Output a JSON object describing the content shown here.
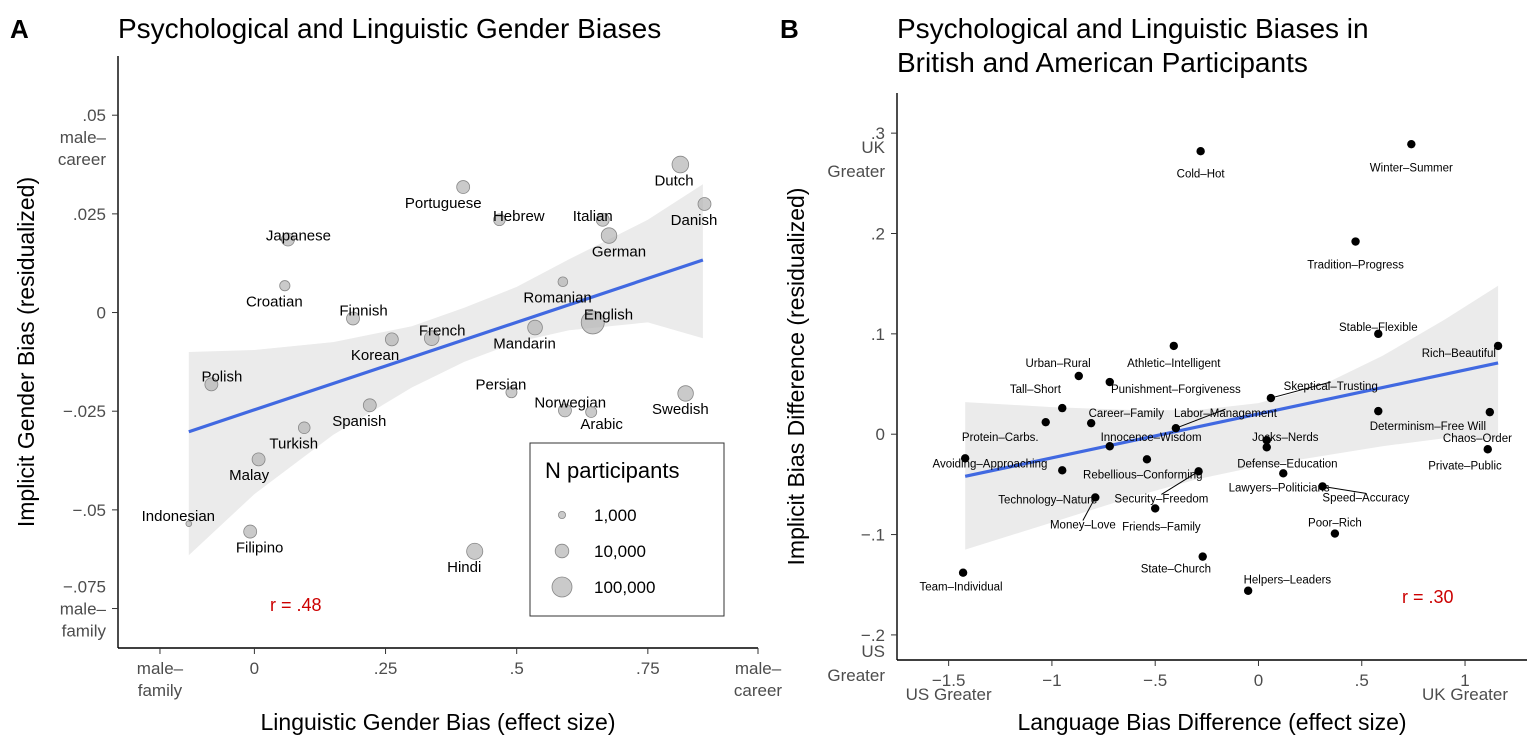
{
  "panels": {
    "a": {
      "letter": "A",
      "title": "Psychological and Linguistic Gender Biases",
      "r_label": "r = .48"
    },
    "b": {
      "letter": "B",
      "title_line1": "Psychological and Linguistic Biases in",
      "title_line2": "British and American Participants",
      "r_label": "r = .30"
    }
  },
  "legend": {
    "title": "N participants",
    "items": [
      {
        "label": "1,000",
        "n": 1000
      },
      {
        "label": "10,000",
        "n": 10000
      },
      {
        "label": "100,000",
        "n": 100000
      }
    ]
  },
  "chart_data": [
    {
      "type": "scatter",
      "title": "Psychological and Linguistic Gender Biases",
      "xlabel": "Linguistic Gender Bias (effect size)",
      "ylabel": "Implicit  Gender Bias (residualized)",
      "xlim": [
        -0.26,
        0.96
      ],
      "ylim": [
        -0.085,
        0.065
      ],
      "x_ticks": [
        {
          "value": -0.18,
          "label": "male–\nfamily"
        },
        {
          "value": 0,
          "label": "0"
        },
        {
          "value": 0.25,
          "label": ".25"
        },
        {
          "value": 0.5,
          "label": ".5"
        },
        {
          "value": 0.75,
          "label": ".75"
        },
        {
          "value": 0.96,
          "label": "male–\ncareer"
        }
      ],
      "y_ticks": [
        {
          "value": 0.05,
          "label": ".05\nmale–\ncareer"
        },
        {
          "value": 0.025,
          "label": ".025"
        },
        {
          "value": 0,
          "label": "0"
        },
        {
          "value": -0.025,
          "label": "−.025"
        },
        {
          "value": -0.05,
          "label": "−.05"
        },
        {
          "value": -0.075,
          "label": "−.075\nmale–\nfamily"
        }
      ],
      "point_color": "#b3b3b3",
      "line_color": "#4169e1",
      "band_color": "#ebebeb",
      "fit": {
        "x": [
          -0.125,
          0.855
        ],
        "y": [
          -0.0302,
          0.0133
        ]
      },
      "band": {
        "x": [
          -0.125,
          0.0,
          0.15,
          0.3,
          0.4,
          0.5,
          0.6,
          0.75,
          0.855
        ],
        "lower": [
          -0.0615,
          -0.046,
          -0.031,
          -0.019,
          -0.0125,
          -0.0075,
          -0.0045,
          -0.0025,
          -0.0065
        ],
        "upper": [
          -0.01,
          -0.0095,
          -0.0075,
          -0.0035,
          0.0012,
          0.0065,
          0.0135,
          0.0235,
          0.0325
        ]
      },
      "r": 0.48,
      "points": [
        {
          "label": "Dutch",
          "x": 0.812,
          "y": 0.0375,
          "n": 30000,
          "lx": 0.8,
          "ly": 0.0335
        },
        {
          "label": "Danish",
          "x": 0.858,
          "y": 0.0275,
          "n": 8000,
          "lx": 0.838,
          "ly": 0.0235
        },
        {
          "label": "Portuguese",
          "x": 0.398,
          "y": 0.0318,
          "n": 8000,
          "lx": 0.36,
          "ly": 0.0278
        },
        {
          "label": "Hebrew",
          "x": 0.467,
          "y": 0.0235,
          "n": 5000,
          "lx": 0.504,
          "ly": 0.0245
        },
        {
          "label": "Italian",
          "x": 0.664,
          "y": 0.0235,
          "n": 8000,
          "lx": 0.645,
          "ly": 0.0245
        },
        {
          "label": "German",
          "x": 0.676,
          "y": 0.0195,
          "n": 20000,
          "lx": 0.695,
          "ly": 0.0155
        },
        {
          "label": "Japanese",
          "x": 0.064,
          "y": 0.0185,
          "n": 8000,
          "lx": 0.084,
          "ly": 0.0195
        },
        {
          "label": "Croatian",
          "x": 0.058,
          "y": 0.0068,
          "n": 3000,
          "lx": 0.038,
          "ly": 0.0028
        },
        {
          "label": "Romanian",
          "x": 0.588,
          "y": 0.0078,
          "n": 2500,
          "lx": 0.578,
          "ly": 0.0038
        },
        {
          "label": "Finnish",
          "x": 0.188,
          "y": -0.0015,
          "n": 8000,
          "lx": 0.208,
          "ly": 0.0005
        },
        {
          "label": "English",
          "x": 0.645,
          "y": -0.0025,
          "n": 300000,
          "lx": 0.675,
          "ly": -0.0005
        },
        {
          "label": "French",
          "x": 0.338,
          "y": -0.0065,
          "n": 15000,
          "lx": 0.358,
          "ly": -0.0045
        },
        {
          "label": "Mandarin",
          "x": 0.535,
          "y": -0.0038,
          "n": 15000,
          "lx": 0.515,
          "ly": -0.0078
        },
        {
          "label": "Korean",
          "x": 0.262,
          "y": -0.0068,
          "n": 8000,
          "lx": 0.23,
          "ly": -0.0108
        },
        {
          "label": "Polish",
          "x": -0.082,
          "y": -0.0182,
          "n": 8000,
          "lx": -0.062,
          "ly": -0.0162
        },
        {
          "label": "Persian",
          "x": 0.49,
          "y": -0.0202,
          "n": 4000,
          "lx": 0.47,
          "ly": -0.0182
        },
        {
          "label": "Norwegian",
          "x": 0.592,
          "y": -0.0248,
          "n": 8000,
          "lx": 0.602,
          "ly": -0.0228
        },
        {
          "label": "Swedish",
          "x": 0.822,
          "y": -0.0205,
          "n": 20000,
          "lx": 0.812,
          "ly": -0.0245
        },
        {
          "label": "Arabic",
          "x": 0.642,
          "y": -0.0252,
          "n": 4000,
          "lx": 0.662,
          "ly": -0.0282
        },
        {
          "label": "Spanish",
          "x": 0.22,
          "y": -0.0235,
          "n": 8000,
          "lx": 0.2,
          "ly": -0.0275
        },
        {
          "label": "Turkish",
          "x": 0.095,
          "y": -0.0292,
          "n": 5000,
          "lx": 0.075,
          "ly": -0.0332
        },
        {
          "label": "Malay",
          "x": 0.008,
          "y": -0.0372,
          "n": 8000,
          "lx": -0.01,
          "ly": -0.0412
        },
        {
          "label": "Indonesian",
          "x": -0.125,
          "y": -0.0535,
          "n": 600,
          "lx": -0.145,
          "ly": -0.0515
        },
        {
          "label": "Filipino",
          "x": -0.008,
          "y": -0.0555,
          "n": 8000,
          "lx": 0.01,
          "ly": -0.0595
        },
        {
          "label": "Hindi",
          "x": 0.42,
          "y": -0.0605,
          "n": 25000,
          "lx": 0.4,
          "ly": -0.0645
        }
      ]
    },
    {
      "type": "scatter",
      "title": "Psychological and Linguistic Biases in British and American Participants",
      "xlabel": "Language Bias Difference (effect size)",
      "ylabel": "Implicit Bias Difference (residualized)",
      "xlim": [
        -1.75,
        1.3
      ],
      "ylim": [
        -0.225,
        0.34
      ],
      "x_ticks": [
        {
          "value": -1.5,
          "label": "−1.5"
        },
        {
          "value": -1,
          "label": "−1"
        },
        {
          "value": -0.5,
          "label": "−.5"
        },
        {
          "value": 0,
          "label": "0"
        },
        {
          "value": 0.5,
          "label": ".5"
        },
        {
          "value": 1,
          "label": "1"
        }
      ],
      "x_extra_labels": [
        {
          "value": -1.5,
          "label": "US Greater"
        },
        {
          "value": 1.0,
          "label": "UK Greater"
        }
      ],
      "y_ticks": [
        {
          "value": 0.3,
          "label": ".3"
        },
        {
          "value": 0.2,
          "label": ".2"
        },
        {
          "value": 0.1,
          "label": ".1"
        },
        {
          "value": 0,
          "label": "0"
        },
        {
          "value": -0.1,
          "label": "−.1"
        },
        {
          "value": -0.2,
          "label": "−.2"
        }
      ],
      "y_extra_labels": [
        {
          "value": 0.28,
          "label": "UK\nGreater"
        },
        {
          "value": -0.222,
          "label": "US\nGreater"
        }
      ],
      "point_color": "#000000",
      "line_color": "#4169e1",
      "band_color": "#ebebeb",
      "fit": {
        "x": [
          -1.42,
          1.16
        ],
        "y": [
          -0.042,
          0.071
        ]
      },
      "band": {
        "x": [
          -1.42,
          -1.0,
          -0.6,
          -0.3,
          0.0,
          0.3,
          0.6,
          0.9,
          1.16
        ],
        "lower": [
          -0.115,
          -0.088,
          -0.062,
          -0.045,
          -0.032,
          -0.022,
          -0.012,
          -0.004,
          -0.005
        ],
        "upper": [
          0.032,
          0.027,
          0.024,
          0.024,
          0.031,
          0.048,
          0.078,
          0.114,
          0.148
        ]
      },
      "r": 0.3,
      "points": [
        {
          "label": "Cold–Hot",
          "x": -0.28,
          "y": 0.282,
          "lx": -0.28,
          "ly": 0.26
        },
        {
          "label": "Winter–Summer",
          "x": 0.74,
          "y": 0.289,
          "lx": 0.74,
          "ly": 0.266
        },
        {
          "label": "Tradition–Progress",
          "x": 0.47,
          "y": 0.192,
          "lx": 0.47,
          "ly": 0.169
        },
        {
          "label": "Stable–Flexible",
          "x": 0.58,
          "y": 0.1,
          "lx": 0.58,
          "ly": 0.107
        },
        {
          "label": "Rich–Beautiful",
          "x": 1.16,
          "y": 0.088,
          "lx": 0.97,
          "ly": 0.081
        },
        {
          "label": "Athletic–Intelligent",
          "x": -0.41,
          "y": 0.088,
          "lx": -0.41,
          "ly": 0.071
        },
        {
          "label": "Urban–Rural",
          "x": -0.87,
          "y": 0.058,
          "lx": -0.97,
          "ly": 0.071
        },
        {
          "label": "Punishment–Forgiveness",
          "x": -0.72,
          "y": 0.052,
          "lx": -0.4,
          "ly": 0.045
        },
        {
          "label": "Tall–Short",
          "x": -0.95,
          "y": 0.026,
          "lx": -1.08,
          "ly": 0.045
        },
        {
          "label": "Skeptical–Trusting",
          "x": 0.06,
          "y": 0.036,
          "lx": 0.35,
          "ly": 0.048,
          "leader": true
        },
        {
          "label": "Career–Family",
          "x": -0.81,
          "y": 0.011,
          "lx": -0.64,
          "ly": 0.021
        },
        {
          "label": "Labor–Management",
          "x": -0.4,
          "y": 0.006,
          "lx": -0.16,
          "ly": 0.021,
          "leader": true
        },
        {
          "label": "Determinism–Free Will",
          "x": 0.58,
          "y": 0.023,
          "lx": 0.82,
          "ly": 0.008
        },
        {
          "label": "Chaos–Order",
          "x": 1.12,
          "y": 0.022,
          "lx": 1.06,
          "ly": -0.004
        },
        {
          "label": "Protein–Carbs.",
          "x": -1.03,
          "y": 0.012,
          "lx": -1.25,
          "ly": -0.003
        },
        {
          "label": "Innocence–Wisdom",
          "x": -0.72,
          "y": -0.012,
          "lx": -0.52,
          "ly": -0.003
        },
        {
          "label": "Jocks–Nerds",
          "x": 0.04,
          "y": -0.013,
          "lx": 0.13,
          "ly": -0.003
        },
        {
          "label": "Avoiding–Approaching",
          "x": -1.42,
          "y": -0.024,
          "lx": -1.3,
          "ly": -0.029
        },
        {
          "label": "Defense–Education",
          "x": 0.04,
          "y": -0.006,
          "lx": 0.14,
          "ly": -0.029
        },
        {
          "label": "Private–Public",
          "x": 1.11,
          "y": -0.015,
          "lx": 1.0,
          "ly": -0.031
        },
        {
          "label": "Rebellious–Conforming",
          "x": -0.54,
          "y": -0.025,
          "lx": -0.56,
          "ly": -0.04
        },
        {
          "label": "Technology–Nature",
          "x": -0.95,
          "y": -0.036,
          "lx": -1.02,
          "ly": -0.065
        },
        {
          "label": "Lawyers–Politicians",
          "x": 0.12,
          "y": -0.039,
          "lx": 0.1,
          "ly": -0.053
        },
        {
          "label": "Security–Freedom",
          "x": -0.29,
          "y": -0.037,
          "lx": -0.47,
          "ly": -0.064,
          "leader": true
        },
        {
          "label": "Speed–Accuracy",
          "x": 0.31,
          "y": -0.052,
          "lx": 0.52,
          "ly": -0.063,
          "leader": true
        },
        {
          "label": "Money–Love",
          "x": -0.79,
          "y": -0.063,
          "lx": -0.85,
          "ly": -0.09,
          "leader": true
        },
        {
          "label": "Friends–Family",
          "x": -0.5,
          "y": -0.074,
          "lx": -0.47,
          "ly": -0.092
        },
        {
          "label": "Poor–Rich",
          "x": 0.37,
          "y": -0.099,
          "lx": 0.37,
          "ly": -0.088
        },
        {
          "label": "State–Church",
          "x": -0.27,
          "y": -0.122,
          "lx": -0.4,
          "ly": -0.134
        },
        {
          "label": "Helpers–Leaders",
          "x": -0.05,
          "y": -0.156,
          "lx": 0.14,
          "ly": -0.145
        },
        {
          "label": "Team–Individual",
          "x": -1.43,
          "y": -0.138,
          "lx": -1.44,
          "ly": -0.152
        }
      ]
    }
  ]
}
